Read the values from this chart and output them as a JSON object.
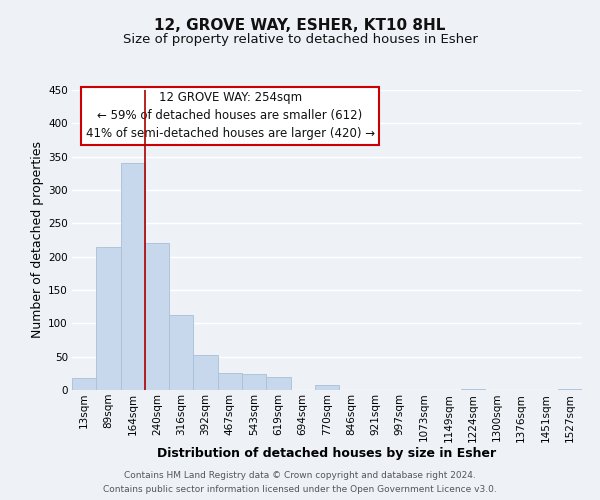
{
  "title": "12, GROVE WAY, ESHER, KT10 8HL",
  "subtitle": "Size of property relative to detached houses in Esher",
  "xlabel": "Distribution of detached houses by size in Esher",
  "ylabel": "Number of detached properties",
  "bar_labels": [
    "13sqm",
    "89sqm",
    "164sqm",
    "240sqm",
    "316sqm",
    "392sqm",
    "467sqm",
    "543sqm",
    "619sqm",
    "694sqm",
    "770sqm",
    "846sqm",
    "921sqm",
    "997sqm",
    "1073sqm",
    "1149sqm",
    "1224sqm",
    "1300sqm",
    "1376sqm",
    "1451sqm",
    "1527sqm"
  ],
  "bar_values": [
    18,
    215,
    340,
    220,
    113,
    53,
    26,
    24,
    20,
    0,
    7,
    0,
    0,
    0,
    0,
    0,
    2,
    0,
    0,
    0,
    2
  ],
  "bar_color": "#c8d8ec",
  "bar_edge_color": "#a8c0d8",
  "vline_color": "#aa0000",
  "vline_x_index": 3,
  "ylim": [
    0,
    450
  ],
  "yticks": [
    0,
    50,
    100,
    150,
    200,
    250,
    300,
    350,
    400,
    450
  ],
  "annotation_line1": "12 GROVE WAY: 254sqm",
  "annotation_line2": "← 59% of detached houses are smaller (612)",
  "annotation_line3": "41% of semi-detached houses are larger (420) →",
  "annotation_box_facecolor": "#ffffff",
  "annotation_box_edgecolor": "#cc0000",
  "footer_line1": "Contains HM Land Registry data © Crown copyright and database right 2024.",
  "footer_line2": "Contains public sector information licensed under the Open Government Licence v3.0.",
  "background_color": "#eef2f7",
  "grid_color": "#ffffff",
  "title_fontsize": 11,
  "subtitle_fontsize": 9.5,
  "axis_label_fontsize": 9,
  "tick_fontsize": 7.5,
  "annotation_fontsize": 8.5,
  "footer_fontsize": 6.5
}
